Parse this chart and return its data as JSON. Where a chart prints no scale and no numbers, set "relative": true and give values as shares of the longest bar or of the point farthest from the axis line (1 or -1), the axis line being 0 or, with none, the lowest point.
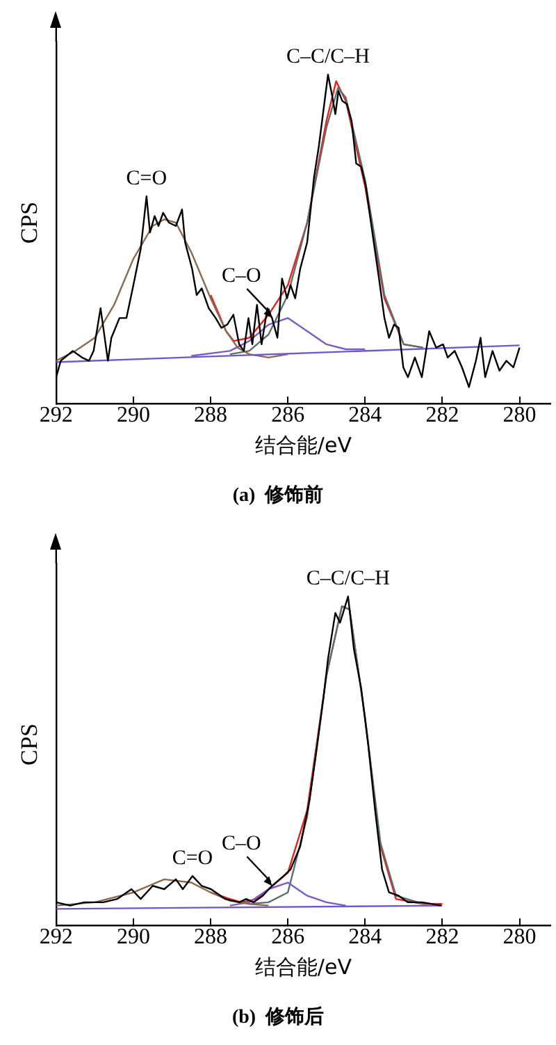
{
  "chart_data": [
    {
      "type": "line",
      "title": "(a)  修饰前",
      "xlabel": "结合能/eV",
      "ylabel": "CPS",
      "relative": true,
      "xlim": [
        292,
        279.2
      ],
      "xticks": [
        292,
        290,
        288,
        286,
        284,
        282,
        280
      ],
      "grid": false,
      "legend": false,
      "marker": "none",
      "line_style": "solid",
      "annotations": [
        {
          "text": "C=O",
          "x": 289.66,
          "y": 0.63
        },
        {
          "text": "C–O",
          "x": 286.41,
          "y": 0.26
        },
        {
          "text": "C–C/C–H",
          "x": 284.96,
          "y": 1.0
        }
      ],
      "series": [
        {
          "color": "#000000",
          "x": [
            292.0,
            291.88,
            291.57,
            291.33,
            291.15,
            291.03,
            290.85,
            290.66,
            290.57,
            290.36,
            290.18,
            290.0,
            289.81,
            289.66,
            289.57,
            289.45,
            289.35,
            289.23,
            289.08,
            288.9,
            288.74,
            288.66,
            288.48,
            288.36,
            288.23,
            288.05,
            287.87,
            287.72,
            287.57,
            287.41,
            287.26,
            287.14,
            287.02,
            286.92,
            286.8,
            286.68,
            286.53,
            286.41,
            286.27,
            286.15,
            286.02,
            285.93,
            285.81,
            285.68,
            285.5,
            285.32,
            285.2,
            285.08,
            284.96,
            284.86,
            284.77,
            284.69,
            284.59,
            284.47,
            284.35,
            284.23,
            284.1,
            283.98,
            283.8,
            283.64,
            283.5,
            283.38,
            283.25,
            283.13,
            283.01,
            282.89,
            282.71,
            282.53,
            282.34,
            282.16,
            281.98,
            281.86,
            281.68,
            281.49,
            281.31,
            281.13,
            281.01,
            280.89,
            280.7,
            280.52,
            280.34,
            280.16,
            280.0
          ],
          "values": [
            0.08,
            0.13,
            0.16,
            0.14,
            0.13,
            0.16,
            0.29,
            0.13,
            0.2,
            0.26,
            0.26,
            0.36,
            0.47,
            0.63,
            0.52,
            0.57,
            0.54,
            0.58,
            0.55,
            0.54,
            0.59,
            0.49,
            0.41,
            0.33,
            0.35,
            0.29,
            0.26,
            0.23,
            0.24,
            0.27,
            0.18,
            0.16,
            0.26,
            0.18,
            0.3,
            0.18,
            0.29,
            0.26,
            0.2,
            0.38,
            0.32,
            0.36,
            0.32,
            0.41,
            0.49,
            0.69,
            0.78,
            0.89,
            1.0,
            0.94,
            0.88,
            0.95,
            0.92,
            0.91,
            0.86,
            0.73,
            0.72,
            0.66,
            0.51,
            0.38,
            0.26,
            0.2,
            0.24,
            0.23,
            0.11,
            0.08,
            0.14,
            0.08,
            0.22,
            0.17,
            0.18,
            0.14,
            0.16,
            0.11,
            0.05,
            0.13,
            0.2,
            0.08,
            0.16,
            0.1,
            0.13,
            0.11,
            0.17
          ]
        },
        {
          "color": "#6a5acd",
          "x": [
            292,
            280
          ],
          "values": [
            0.126,
            0.177
          ]
        },
        {
          "color": "#8b6a50",
          "x": [
            292,
            291.5,
            291,
            290.5,
            290,
            289.5,
            289.2,
            288.9,
            288.5,
            288,
            287.6,
            287.3,
            287,
            286.5,
            286
          ],
          "values": [
            0.13,
            0.16,
            0.2,
            0.3,
            0.44,
            0.54,
            0.56,
            0.55,
            0.46,
            0.32,
            0.22,
            0.17,
            0.15,
            0.14,
            0.15
          ]
        },
        {
          "color": "#7b5cc4",
          "x": [
            288.5,
            287.5,
            287,
            286.5,
            286,
            285.5,
            285,
            284.5,
            284
          ],
          "values": [
            0.145,
            0.16,
            0.19,
            0.24,
            0.26,
            0.22,
            0.18,
            0.165,
            0.165
          ]
        },
        {
          "color": "#5a7070",
          "x": [
            287.5,
            287,
            286.5,
            286,
            285.5,
            285,
            284.7,
            284.5,
            284,
            283.5,
            283,
            282.5
          ],
          "values": [
            0.15,
            0.16,
            0.21,
            0.33,
            0.55,
            0.84,
            0.96,
            0.93,
            0.68,
            0.33,
            0.18,
            0.17
          ]
        },
        {
          "color": "#e8201a",
          "x": [
            288,
            287.6,
            287.4,
            287,
            286.5,
            286,
            285.5,
            285,
            284.75,
            284.5,
            284,
            283.5,
            283,
            282.5
          ],
          "values": [
            0.33,
            0.22,
            0.19,
            0.2,
            0.27,
            0.36,
            0.55,
            0.86,
            0.98,
            0.92,
            0.66,
            0.32,
            0.18,
            0.17
          ]
        }
      ]
    },
    {
      "type": "line",
      "title": "(b)  修饰后",
      "xlabel": "结合能/eV",
      "ylabel": "CPS",
      "relative": true,
      "xlim": [
        292,
        279.2
      ],
      "xticks": [
        292,
        290,
        288,
        286,
        284,
        282,
        280
      ],
      "grid": false,
      "legend": false,
      "marker": "none",
      "line_style": "solid",
      "annotations": [
        {
          "text": "C=O",
          "x": 288.47,
          "y": 0.15
        },
        {
          "text": "C–O",
          "x": 286.41,
          "y": 0.12
        },
        {
          "text": "C–C/C–H",
          "x": 284.44,
          "y": 1.0
        }
      ],
      "series": [
        {
          "color": "#000000",
          "x": [
            292.0,
            291.64,
            291.27,
            290.78,
            290.42,
            290.05,
            289.81,
            289.5,
            289.2,
            288.9,
            288.72,
            288.47,
            288.23,
            287.99,
            287.62,
            287.26,
            287.08,
            286.89,
            286.65,
            286.41,
            286.11,
            285.93,
            285.68,
            285.44,
            285.26,
            285.08,
            284.96,
            284.77,
            284.65,
            284.57,
            284.44,
            284.29,
            284.1,
            283.92,
            283.74,
            283.56,
            283.38,
            283.13,
            282.89,
            282.52,
            282.03
          ],
          "values": [
            0.07,
            0.06,
            0.07,
            0.07,
            0.08,
            0.11,
            0.08,
            0.12,
            0.11,
            0.14,
            0.11,
            0.15,
            0.12,
            0.11,
            0.08,
            0.07,
            0.08,
            0.07,
            0.09,
            0.12,
            0.15,
            0.17,
            0.24,
            0.38,
            0.53,
            0.69,
            0.81,
            0.95,
            0.92,
            0.95,
            1.0,
            0.84,
            0.72,
            0.55,
            0.35,
            0.17,
            0.1,
            0.09,
            0.07,
            0.07,
            0.06
          ]
        },
        {
          "color": "#6a5acd",
          "x": [
            292,
            282
          ],
          "values": [
            0.05,
            0.06
          ]
        },
        {
          "color": "#8b6a50",
          "x": [
            292,
            291,
            290,
            289.2,
            288.5,
            288,
            287.5,
            287,
            286.5
          ],
          "values": [
            0.06,
            0.07,
            0.1,
            0.14,
            0.13,
            0.1,
            0.075,
            0.065,
            0.06
          ]
        },
        {
          "color": "#7b5cc4",
          "x": [
            287.5,
            287,
            286.5,
            286,
            285.5,
            285,
            284.5
          ],
          "values": [
            0.06,
            0.07,
            0.11,
            0.13,
            0.09,
            0.07,
            0.06
          ]
        },
        {
          "color": "#5a7070",
          "x": [
            287,
            286.5,
            286,
            285.5,
            285,
            284.6,
            284.4,
            284,
            283.6,
            283.2,
            282.5
          ],
          "values": [
            0.065,
            0.07,
            0.1,
            0.33,
            0.76,
            0.97,
            0.96,
            0.63,
            0.25,
            0.09,
            0.065
          ]
        },
        {
          "color": "#e8201a",
          "x": [
            288,
            287.5,
            287.2,
            286.8,
            286.5,
            286,
            285.5,
            285,
            284.6,
            284.4,
            284,
            283.6,
            283.2,
            282.5,
            282
          ],
          "values": [
            0.1,
            0.08,
            0.07,
            0.08,
            0.11,
            0.16,
            0.35,
            0.76,
            0.97,
            0.96,
            0.63,
            0.24,
            0.08,
            0.065,
            0.065
          ]
        }
      ]
    }
  ]
}
